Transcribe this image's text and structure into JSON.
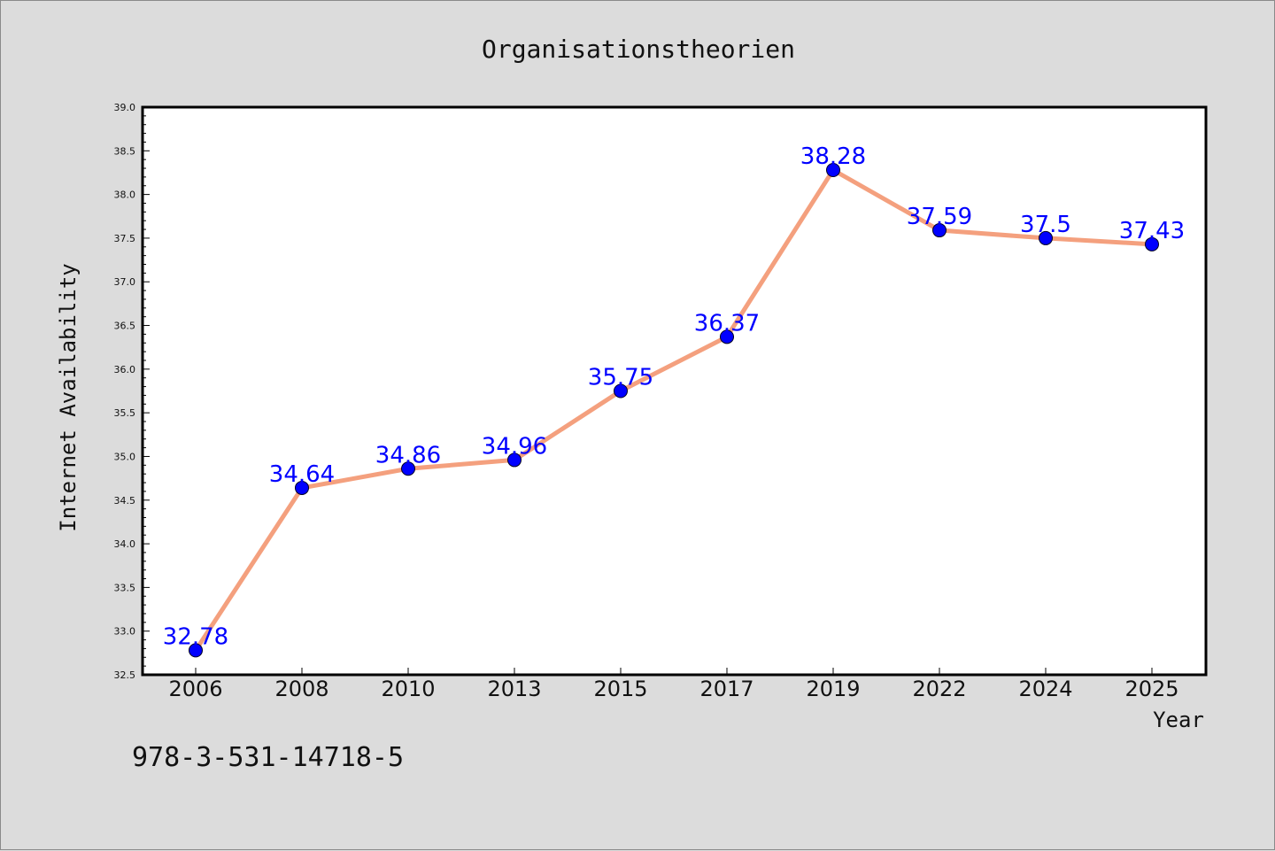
{
  "chart_data": {
    "type": "line",
    "title": "Organisationstheorien",
    "xlabel": "Year",
    "ylabel": "Internet Availability",
    "categories": [
      "2006",
      "2008",
      "2010",
      "2013",
      "2015",
      "2017",
      "2019",
      "2022",
      "2024",
      "2025"
    ],
    "series": [
      {
        "values": [
          32.78,
          34.64,
          34.86,
          34.96,
          35.75,
          36.37,
          38.28,
          37.59,
          37.5,
          37.43
        ],
        "labels": [
          "32.78",
          "34.64",
          "34.86",
          "34.96",
          "35.75",
          "36.37",
          "38.28",
          "37.59",
          "37.5",
          "37.43"
        ],
        "line_color": "#f4a07e",
        "marker_color": "#0000ff"
      }
    ],
    "ylim": [
      32.5,
      39.0
    ],
    "yticks": [
      "32.5",
      "33.0",
      "33.5",
      "34.0",
      "34.5",
      "35.0",
      "35.5",
      "36.0",
      "36.5",
      "37.0",
      "37.5",
      "38.0",
      "38.5",
      "39.0"
    ],
    "grid": false,
    "legend": "none",
    "annotation": "978-3-531-14718-5",
    "colors": {
      "background": "#dcdcdc",
      "plot_background": "#ffffff",
      "label_color": "#0000ff"
    }
  }
}
